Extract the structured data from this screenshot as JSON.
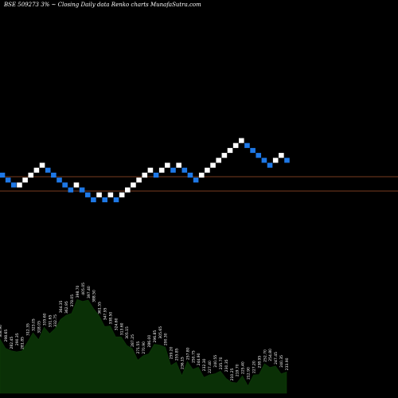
{
  "chart_data": {
    "type": "renko",
    "title": "BSE 509273 3% ~  Closing Daily data  Renko  charts MunafaSutra.com",
    "bricks": [
      {
        "n": 0,
        "level": 0,
        "dir": "down"
      },
      {
        "n": 1,
        "level": -1,
        "dir": "down"
      },
      {
        "n": 2,
        "level": -2,
        "dir": "down"
      },
      {
        "n": 3,
        "level": -2,
        "dir": "up"
      },
      {
        "n": 4,
        "level": -1,
        "dir": "up"
      },
      {
        "n": 5,
        "level": 0,
        "dir": "up"
      },
      {
        "n": 6,
        "level": 1,
        "dir": "up"
      },
      {
        "n": 7,
        "level": 2,
        "dir": "up"
      },
      {
        "n": 8,
        "level": 1,
        "dir": "down"
      },
      {
        "n": 9,
        "level": 0,
        "dir": "down"
      },
      {
        "n": 10,
        "level": -1,
        "dir": "down"
      },
      {
        "n": 11,
        "level": -2,
        "dir": "down"
      },
      {
        "n": 12,
        "level": -3,
        "dir": "down"
      },
      {
        "n": 13,
        "level": -2,
        "dir": "up"
      },
      {
        "n": 14,
        "level": -3,
        "dir": "down"
      },
      {
        "n": 15,
        "level": -4,
        "dir": "down"
      },
      {
        "n": 16,
        "level": -5,
        "dir": "down"
      },
      {
        "n": 17,
        "level": -4,
        "dir": "up"
      },
      {
        "n": 18,
        "level": -5,
        "dir": "down"
      },
      {
        "n": 19,
        "level": -4,
        "dir": "up"
      },
      {
        "n": 20,
        "level": -5,
        "dir": "down"
      },
      {
        "n": 21,
        "level": -4,
        "dir": "up"
      },
      {
        "n": 22,
        "level": -3,
        "dir": "up"
      },
      {
        "n": 23,
        "level": -2,
        "dir": "up"
      },
      {
        "n": 24,
        "level": -1,
        "dir": "up"
      },
      {
        "n": 25,
        "level": 0,
        "dir": "up"
      },
      {
        "n": 26,
        "level": 1,
        "dir": "up"
      },
      {
        "n": 27,
        "level": 0,
        "dir": "down"
      },
      {
        "n": 28,
        "level": 1,
        "dir": "up"
      },
      {
        "n": 29,
        "level": 2,
        "dir": "up"
      },
      {
        "n": 30,
        "level": 1,
        "dir": "down"
      },
      {
        "n": 31,
        "level": 2,
        "dir": "up"
      },
      {
        "n": 32,
        "level": 1,
        "dir": "down"
      },
      {
        "n": 33,
        "level": 0,
        "dir": "down"
      },
      {
        "n": 34,
        "level": -1,
        "dir": "down"
      },
      {
        "n": 35,
        "level": 0,
        "dir": "up"
      },
      {
        "n": 36,
        "level": 1,
        "dir": "up"
      },
      {
        "n": 37,
        "level": 2,
        "dir": "up"
      },
      {
        "n": 38,
        "level": 3,
        "dir": "up"
      },
      {
        "n": 39,
        "level": 4,
        "dir": "up"
      },
      {
        "n": 40,
        "level": 5,
        "dir": "up"
      },
      {
        "n": 41,
        "level": 6,
        "dir": "up"
      },
      {
        "n": 42,
        "level": 7,
        "dir": "up"
      },
      {
        "n": 43,
        "level": 6,
        "dir": "down"
      },
      {
        "n": 44,
        "level": 5,
        "dir": "down"
      },
      {
        "n": 45,
        "level": 4,
        "dir": "down"
      },
      {
        "n": 46,
        "level": 3,
        "dir": "down"
      },
      {
        "n": 47,
        "level": 2,
        "dir": "down"
      },
      {
        "n": 48,
        "level": 3,
        "dir": "up"
      },
      {
        "n": 49,
        "level": 4,
        "dir": "up"
      },
      {
        "n": 50,
        "level": 3,
        "dir": "down"
      }
    ],
    "volume_labels": [
      "308.90",
      "298.65",
      "282.45",
      "290.35",
      "281.85",
      "312.35",
      "323.05",
      "318.05",
      "335.60",
      "331.65",
      "332.75",
      "364.35",
      "362.95",
      "378.05",
      "398.70",
      "405.05",
      "397.40",
      "388.50",
      "361.55",
      "347.95",
      "338.50",
      "324.60",
      "313.60",
      "305.15",
      "287.25",
      "271.55",
      "270.90",
      "286.00",
      "296.85",
      "305.65",
      "290.30",
      "259.20",
      "255.85",
      "236.15",
      "257.80",
      "250.75",
      "244.90",
      "232.30",
      "227.40",
      "240.55",
      "235.70",
      "230.35",
      "210.25",
      "219.70",
      "225.40",
      "212.90",
      "227.20",
      "238.95",
      "252.70",
      "254.80",
      "247.45",
      "240.35",
      "233.90"
    ],
    "colors": {
      "up": "#ffffff",
      "down": "#1e78e6",
      "line": "#a0522d",
      "volume": "#0a3006"
    }
  }
}
